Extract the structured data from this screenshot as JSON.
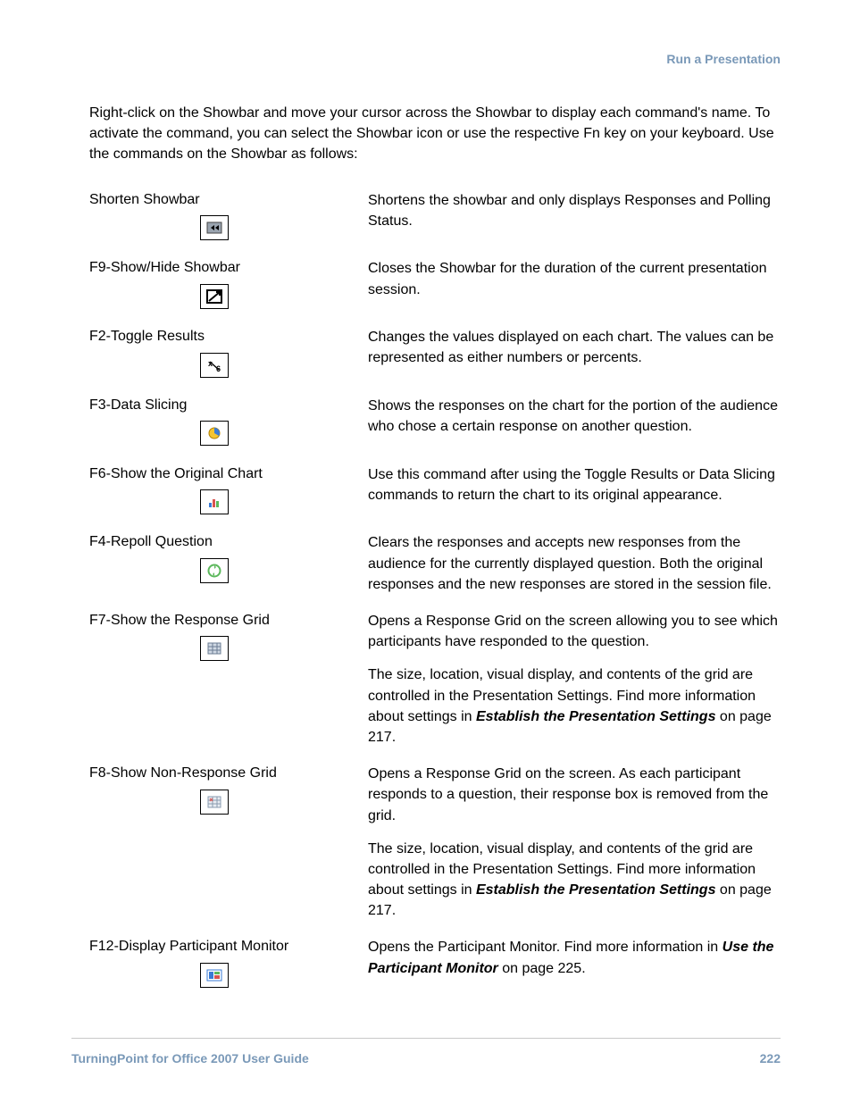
{
  "colors": {
    "accent": "#7a99b8",
    "text": "#000000",
    "rule": "#c9c9c9",
    "icon_border": "#000000",
    "icon_bg": "#ffffff"
  },
  "typography": {
    "body_fontsize_pt": 12,
    "header_fontsize_pt": 10.5,
    "footer_fontsize_pt": 10.5,
    "line_height": 1.45
  },
  "header": {
    "section_title": "Run a Presentation"
  },
  "intro": "Right-click on the Showbar and move your cursor across the Showbar to display each command's name. To activate the command, you can select the Showbar icon or use the respective Fn key on your keyboard. Use the commands on the Showbar as follows:",
  "commands": [
    {
      "label": "Shorten Showbar",
      "icon": "shorten-icon",
      "desc_parts": [
        {
          "text": "Shortens the showbar and only displays Responses and Polling Status."
        }
      ]
    },
    {
      "label": "F9-Show/Hide Showbar",
      "icon": "showhide-icon",
      "desc_parts": [
        {
          "text": "Closes the Showbar for the duration of the current presentation session."
        }
      ]
    },
    {
      "label": "F2-Toggle Results",
      "icon": "toggle-results-icon",
      "desc_parts": [
        {
          "text": "Changes the values displayed on each chart. The values can be represented as either numbers or percents."
        }
      ]
    },
    {
      "label": "F3-Data Slicing",
      "icon": "data-slicing-icon",
      "desc_parts": [
        {
          "text": "Shows the responses on the chart for the portion of the audience who chose a certain response on another question."
        }
      ]
    },
    {
      "label": "F6-Show the Original Chart",
      "icon": "original-chart-icon",
      "desc_parts": [
        {
          "text": "Use this command after using the Toggle Results or Data Slicing commands to return the chart to its original appearance."
        }
      ]
    },
    {
      "label": "F4-Repoll Question",
      "icon": "repoll-icon",
      "desc_parts": [
        {
          "text": "Clears the responses and accepts new responses from the audience for the currently displayed question. Both the original responses and the new responses are stored in the session file."
        }
      ]
    },
    {
      "label": "F7-Show the Response Grid",
      "icon": "response-grid-icon",
      "desc_parts": [
        {
          "text": "Opens a Response Grid on the screen allowing you to see which participants have responded to the question."
        },
        {
          "text": "The size, location, visual display, and contents of the grid are controlled in the Presentation Settings. Find more information about settings in ",
          "bold_ref": "Establish the Presentation Settings",
          "tail": " on page 217."
        }
      ]
    },
    {
      "label": "F8-Show Non-Response Grid",
      "icon": "non-response-grid-icon",
      "desc_parts": [
        {
          "text": "Opens a Response Grid on the screen. As each participant responds to a question, their response box is removed from the grid."
        },
        {
          "text": "The size, location, visual display, and contents of the grid are controlled in the Presentation Settings. Find more information about settings in ",
          "bold_ref": "Establish the Presentation Settings",
          "tail": " on page 217."
        }
      ]
    },
    {
      "label": "F12-Display Participant Monitor",
      "icon": "participant-monitor-icon",
      "desc_parts": [
        {
          "text": "Opens the Participant Monitor. Find more information in ",
          "bold_ref": "Use the Participant Monitor",
          "tail": " on page 225."
        }
      ]
    }
  ],
  "footer": {
    "doc_title": "TurningPoint for Office 2007 User Guide",
    "page_number": "222"
  }
}
